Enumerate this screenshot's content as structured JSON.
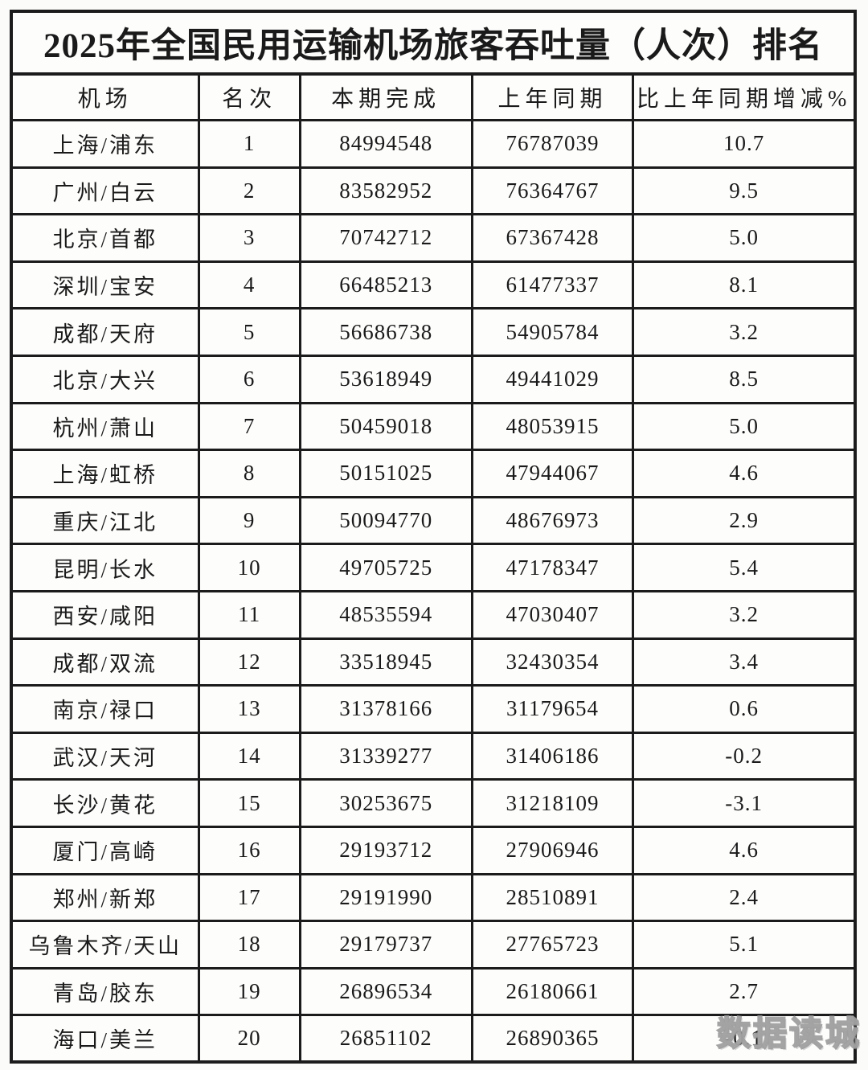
{
  "title": "2025年全国民用运输机场旅客吞吐量（人次）排名",
  "watermark": "数据读城",
  "table": {
    "headers": [
      "机场",
      "名次",
      "本期完成",
      "上年同期",
      "比上年同期增减%"
    ],
    "rows": [
      {
        "airport": "上海/浦东",
        "rank": "1",
        "current": "84994548",
        "previous": "76787039",
        "change_pct": "10.7"
      },
      {
        "airport": "广州/白云",
        "rank": "2",
        "current": "83582952",
        "previous": "76364767",
        "change_pct": "9.5"
      },
      {
        "airport": "北京/首都",
        "rank": "3",
        "current": "70742712",
        "previous": "67367428",
        "change_pct": "5.0"
      },
      {
        "airport": "深圳/宝安",
        "rank": "4",
        "current": "66485213",
        "previous": "61477337",
        "change_pct": "8.1"
      },
      {
        "airport": "成都/天府",
        "rank": "5",
        "current": "56686738",
        "previous": "54905784",
        "change_pct": "3.2"
      },
      {
        "airport": "北京/大兴",
        "rank": "6",
        "current": "53618949",
        "previous": "49441029",
        "change_pct": "8.5"
      },
      {
        "airport": "杭州/萧山",
        "rank": "7",
        "current": "50459018",
        "previous": "48053915",
        "change_pct": "5.0"
      },
      {
        "airport": "上海/虹桥",
        "rank": "8",
        "current": "50151025",
        "previous": "47944067",
        "change_pct": "4.6"
      },
      {
        "airport": "重庆/江北",
        "rank": "9",
        "current": "50094770",
        "previous": "48676973",
        "change_pct": "2.9"
      },
      {
        "airport": "昆明/长水",
        "rank": "10",
        "current": "49705725",
        "previous": "47178347",
        "change_pct": "5.4"
      },
      {
        "airport": "西安/咸阳",
        "rank": "11",
        "current": "48535594",
        "previous": "47030407",
        "change_pct": "3.2"
      },
      {
        "airport": "成都/双流",
        "rank": "12",
        "current": "33518945",
        "previous": "32430354",
        "change_pct": "3.4"
      },
      {
        "airport": "南京/禄口",
        "rank": "13",
        "current": "31378166",
        "previous": "31179654",
        "change_pct": "0.6"
      },
      {
        "airport": "武汉/天河",
        "rank": "14",
        "current": "31339277",
        "previous": "31406186",
        "change_pct": "-0.2"
      },
      {
        "airport": "长沙/黄花",
        "rank": "15",
        "current": "30253675",
        "previous": "31218109",
        "change_pct": "-3.1"
      },
      {
        "airport": "厦门/高崎",
        "rank": "16",
        "current": "29193712",
        "previous": "27906946",
        "change_pct": "4.6"
      },
      {
        "airport": "郑州/新郑",
        "rank": "17",
        "current": "29191990",
        "previous": "28510891",
        "change_pct": "2.4"
      },
      {
        "airport": "乌鲁木齐/天山",
        "rank": "18",
        "current": "29179737",
        "previous": "27765723",
        "change_pct": "5.1"
      },
      {
        "airport": "青岛/胶东",
        "rank": "19",
        "current": "26896534",
        "previous": "26180661",
        "change_pct": "2.7"
      },
      {
        "airport": "海口/美兰",
        "rank": "20",
        "current": "26851102",
        "previous": "26890365",
        "change_pct": "-0.1"
      }
    ]
  }
}
